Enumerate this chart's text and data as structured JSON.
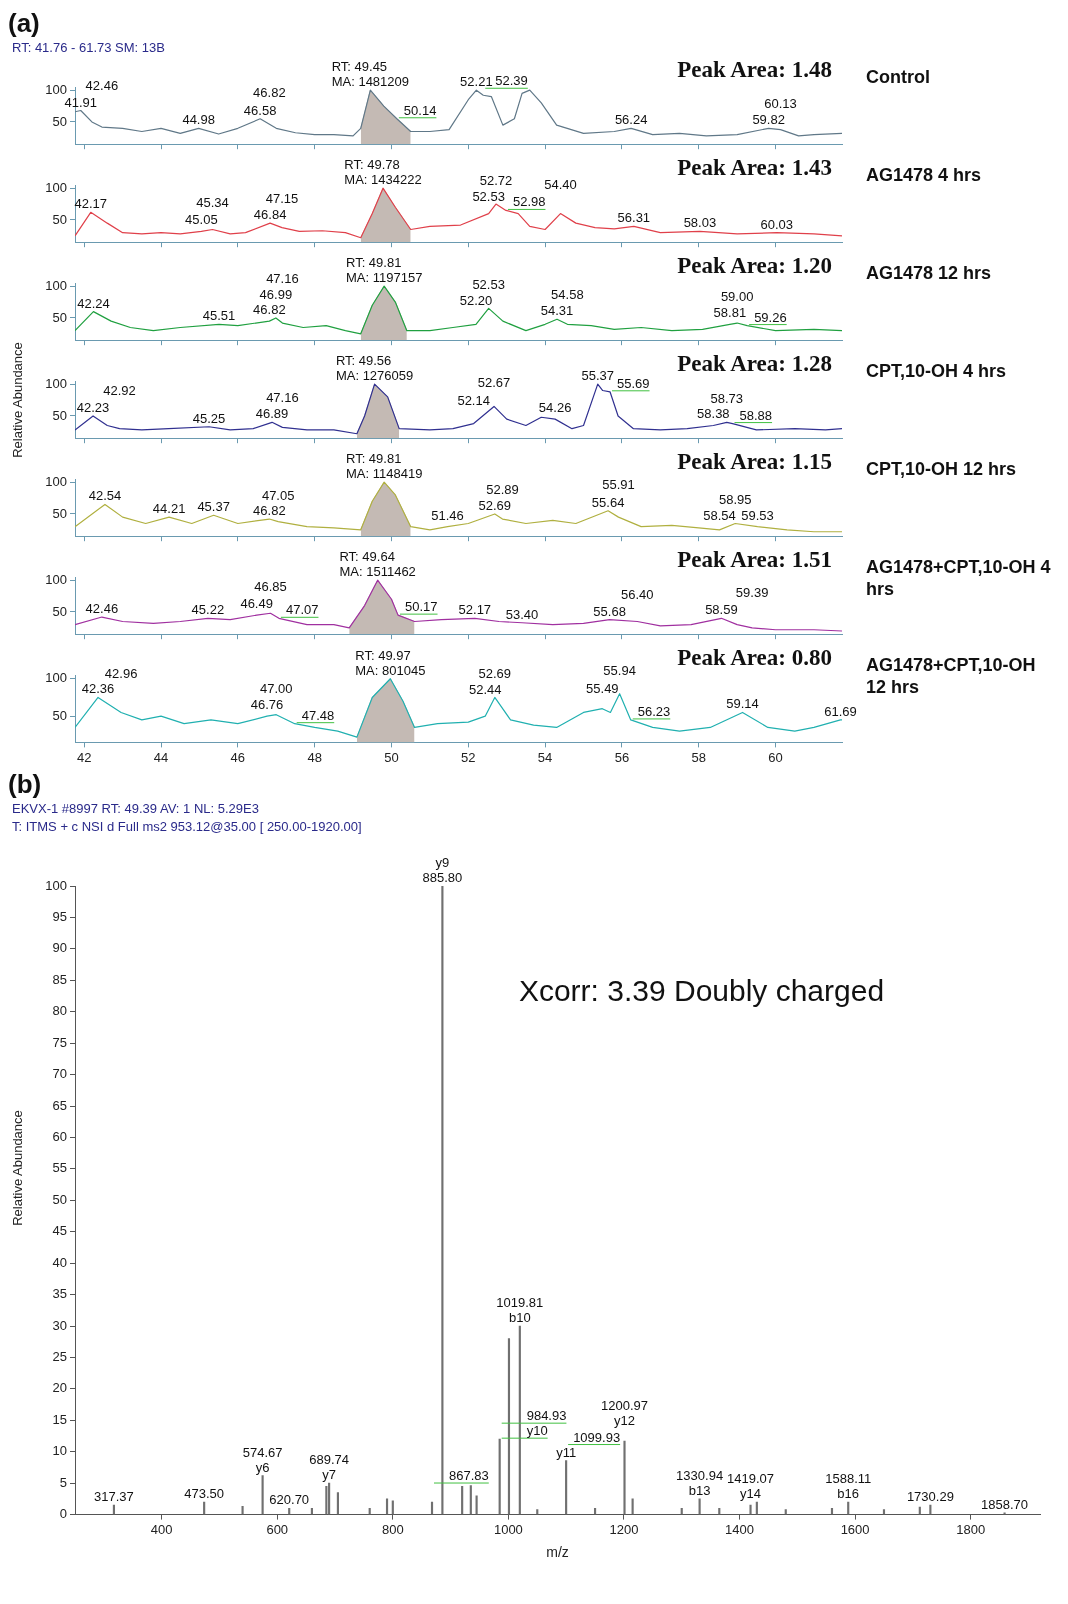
{
  "chart_data": [
    {
      "type": "line",
      "title": "(a)",
      "subtitle": "RT: 41.76 - 61.73   SM: 13B",
      "xlim": [
        41.76,
        61.73
      ],
      "xticks": [
        42,
        44,
        46,
        48,
        50,
        52,
        54,
        56,
        58,
        60
      ],
      "ylim": [
        15,
        105
      ],
      "yticks": [
        50,
        100
      ],
      "tick_labels": "y",
      "series": [
        {
          "color": "#607888",
          "x": [
            41.76,
            41.91,
            42.2,
            42.46,
            43,
            43.5,
            44,
            44.5,
            44.98,
            45.5,
            46,
            46.58,
            47,
            47.5,
            48,
            48.5,
            49,
            49.2,
            49.45,
            49.8,
            50.14,
            50.5,
            51,
            51.5,
            52,
            52.21,
            52.39,
            52.6,
            52.9,
            53.2,
            53.4,
            53.6,
            53.9,
            54.3,
            55,
            55.8,
            56.24,
            56.8,
            57.5,
            58.2,
            59,
            59.82,
            60.13,
            60.6,
            61,
            61.73
          ],
          "values": [
            66,
            68,
            50,
            42,
            40,
            35,
            40,
            32,
            40,
            31,
            40,
            55,
            40,
            33,
            30,
            30,
            28,
            40,
            100,
            75,
            55,
            35,
            35,
            38,
            85,
            100,
            92,
            90,
            45,
            55,
            95,
            100,
            80,
            45,
            32,
            35,
            40,
            30,
            32,
            28,
            30,
            40,
            38,
            28,
            30,
            32
          ]
        },
        {
          "type": "area",
          "color": "#c4bab4",
          "x": [
            49.2,
            49.45,
            49.8,
            50.14,
            50.5
          ],
          "values": [
            40,
            100,
            75,
            55,
            35
          ]
        }
      ],
      "annotations": [
        "Peak Area: 1.48",
        "Control",
        {
          "text": "RT: 49.45\nMA: 1481209",
          "x": 49.45,
          "y": 100
        },
        {
          "text": "41.91",
          "x": 41.91,
          "y": 68
        },
        {
          "text": "42.46",
          "x": 42.46,
          "y": 42
        },
        {
          "text": "44.98",
          "x": 44.98,
          "y": 40
        },
        {
          "text": "46.58",
          "x": 46.58,
          "y": 55
        },
        {
          "text": "46.82",
          "x": 46.82,
          "y": 45
        },
        {
          "text": "50.14",
          "x": 50.14,
          "y": 55
        },
        {
          "text": "52.21",
          "x": 52.21,
          "y": 100
        },
        {
          "text": "52.39",
          "x": 52.39,
          "y": 92
        },
        {
          "text": "56.24",
          "x": 56.24,
          "y": 40
        },
        {
          "text": "59.82",
          "x": 59.82,
          "y": 40
        },
        {
          "text": "60.13",
          "x": 60.13,
          "y": 38
        }
      ]
    },
    {
      "type": "line",
      "xlim": [
        41.76,
        61.73
      ],
      "xticks": [
        42,
        44,
        46,
        48,
        50,
        52,
        54,
        56,
        58,
        60
      ],
      "ylim": [
        15,
        105
      ],
      "yticks": [
        50,
        100
      ],
      "tick_labels": "y",
      "series": [
        {
          "color": "#e0404a",
          "x": [
            41.76,
            42.17,
            42.6,
            43,
            43.5,
            44,
            44.5,
            45.05,
            45.34,
            45.8,
            46.2,
            46.84,
            47.15,
            47.6,
            48.2,
            48.8,
            49.2,
            49.5,
            49.78,
            50.1,
            50.5,
            51,
            51.8,
            52.53,
            52.72,
            52.98,
            53.3,
            53.6,
            54,
            54.4,
            54.8,
            55.3,
            55.8,
            56.31,
            57,
            58.03,
            59,
            60.03,
            61,
            61.73
          ],
          "values": [
            25,
            62,
            45,
            30,
            28,
            30,
            28,
            32,
            35,
            28,
            30,
            45,
            38,
            32,
            33,
            30,
            22,
            60,
            100,
            70,
            35,
            40,
            42,
            60,
            75,
            65,
            60,
            40,
            35,
            60,
            45,
            38,
            36,
            40,
            30,
            32,
            28,
            30,
            28,
            25
          ]
        },
        {
          "type": "area",
          "color": "#c4bab4",
          "x": [
            49.2,
            49.5,
            49.78,
            50.1,
            50.5
          ],
          "values": [
            22,
            60,
            100,
            70,
            35
          ]
        }
      ],
      "annotations": [
        "Peak Area: 1.43",
        "AG1478 4 hrs",
        {
          "text": "RT: 49.78\nMA: 1434222",
          "x": 49.78,
          "y": 100
        },
        {
          "text": "42.17",
          "x": 42.17,
          "y": 62
        },
        {
          "text": "45.05",
          "x": 45.05,
          "y": 32
        },
        {
          "text": "45.34",
          "x": 45.34,
          "y": 35
        },
        {
          "text": "46.84",
          "x": 46.84,
          "y": 45
        },
        {
          "text": "47.15",
          "x": 47.15,
          "y": 38
        },
        {
          "text": "52.53",
          "x": 52.53,
          "y": 60
        },
        {
          "text": "52.72",
          "x": 52.72,
          "y": 75
        },
        {
          "text": "52.98",
          "x": 52.98,
          "y": 65
        },
        {
          "text": "54.40",
          "x": 54.4,
          "y": 60
        },
        {
          "text": "56.31",
          "x": 56.31,
          "y": 40
        },
        {
          "text": "58.03",
          "x": 58.03,
          "y": 32
        },
        {
          "text": "60.03",
          "x": 60.03,
          "y": 30
        }
      ]
    },
    {
      "type": "line",
      "xlim": [
        41.76,
        61.73
      ],
      "xticks": [
        42,
        44,
        46,
        48,
        50,
        52,
        54,
        56,
        58,
        60
      ],
      "ylim": [
        15,
        105
      ],
      "yticks": [
        50,
        100
      ],
      "tick_labels": "y",
      "series": [
        {
          "color": "#20a040",
          "x": [
            41.76,
            42.24,
            42.7,
            43.2,
            43.8,
            44.5,
            45.51,
            46,
            46.82,
            46.99,
            47.16,
            47.7,
            48.3,
            48.8,
            49.2,
            49.5,
            49.81,
            50.1,
            50.4,
            51,
            51.6,
            52.2,
            52.53,
            52.9,
            53.5,
            54,
            54.31,
            54.58,
            55.2,
            55.8,
            56.5,
            57.3,
            58.1,
            58.81,
            59,
            59.26,
            60,
            61,
            61.73
          ],
          "values": [
            30,
            60,
            45,
            35,
            30,
            35,
            40,
            38,
            45,
            50,
            42,
            35,
            38,
            30,
            25,
            70,
            100,
            75,
            30,
            30,
            35,
            40,
            65,
            45,
            30,
            40,
            48,
            40,
            38,
            32,
            35,
            30,
            32,
            40,
            42,
            38,
            30,
            32,
            30
          ]
        },
        {
          "type": "area",
          "color": "#c4bab4",
          "x": [
            49.2,
            49.5,
            49.81,
            50.1,
            50.4
          ],
          "values": [
            25,
            70,
            100,
            75,
            30
          ]
        }
      ],
      "annotations": [
        "Peak Area: 1.20",
        "AG1478 12 hrs",
        {
          "text": "RT: 49.81\nMA: 1197157",
          "x": 49.81,
          "y": 100
        },
        {
          "text": "42.24",
          "x": 42.24,
          "y": 60
        },
        {
          "text": "45.51",
          "x": 45.51,
          "y": 40
        },
        {
          "text": "46.82",
          "x": 46.82,
          "y": 45
        },
        {
          "text": "46.99",
          "x": 46.99,
          "y": 50
        },
        {
          "text": "47.16",
          "x": 47.16,
          "y": 42
        },
        {
          "text": "52.20",
          "x": 52.2,
          "y": 40
        },
        {
          "text": "52.53",
          "x": 52.53,
          "y": 65
        },
        {
          "text": "54.31",
          "x": 54.31,
          "y": 48
        },
        {
          "text": "54.58",
          "x": 54.58,
          "y": 40
        },
        {
          "text": "58.81",
          "x": 58.81,
          "y": 40
        },
        {
          "text": "59.00",
          "x": 59,
          "y": 42
        },
        {
          "text": "59.26",
          "x": 59.26,
          "y": 38
        }
      ]
    },
    {
      "type": "line",
      "ylabel": "Relative Abundance",
      "xlim": [
        41.76,
        61.73
      ],
      "xticks": [
        42,
        44,
        46,
        48,
        50,
        52,
        54,
        56,
        58,
        60
      ],
      "ylim": [
        15,
        105
      ],
      "yticks": [
        50,
        100
      ],
      "tick_labels": "y",
      "series": [
        {
          "color": "#303090",
          "x": [
            41.76,
            42.23,
            42.6,
            42.92,
            43.5,
            44.2,
            45.25,
            45.8,
            46.4,
            46.89,
            47.16,
            47.8,
            48.5,
            49.1,
            49.3,
            49.56,
            49.9,
            50.2,
            51,
            51.6,
            52.14,
            52.67,
            53,
            53.5,
            53.9,
            54.26,
            54.7,
            55,
            55.37,
            55.5,
            55.69,
            55.9,
            56.3,
            57,
            57.7,
            58.38,
            58.73,
            58.88,
            59.5,
            60.5,
            61.3,
            61.73
          ],
          "values": [
            28,
            50,
            35,
            30,
            28,
            30,
            33,
            28,
            30,
            40,
            32,
            28,
            28,
            22,
            50,
            100,
            80,
            30,
            28,
            30,
            38,
            65,
            45,
            35,
            48,
            45,
            30,
            35,
            100,
            90,
            88,
            50,
            30,
            28,
            30,
            35,
            40,
            38,
            28,
            30,
            28,
            30
          ]
        },
        {
          "type": "area",
          "color": "#c4bab4",
          "x": [
            49.1,
            49.3,
            49.56,
            49.9,
            50.2
          ],
          "values": [
            22,
            50,
            100,
            80,
            30
          ]
        }
      ],
      "annotations": [
        "Peak Area: 1.28",
        "CPT,10-OH 4 hrs",
        {
          "text": "RT: 49.56\nMA: 1276059",
          "x": 49.56,
          "y": 100
        },
        {
          "text": "42.23",
          "x": 42.23,
          "y": 50
        },
        {
          "text": "42.92",
          "x": 42.92,
          "y": 30
        },
        {
          "text": "45.25",
          "x": 45.25,
          "y": 33
        },
        {
          "text": "46.89",
          "x": 46.89,
          "y": 40
        },
        {
          "text": "47.16",
          "x": 47.16,
          "y": 32
        },
        {
          "text": "52.14",
          "x": 52.14,
          "y": 38
        },
        {
          "text": "52.67",
          "x": 52.67,
          "y": 65
        },
        {
          "text": "54.26",
          "x": 54.26,
          "y": 45
        },
        {
          "text": "55.37",
          "x": 55.37,
          "y": 100
        },
        {
          "text": "55.69",
          "x": 55.69,
          "y": 88
        },
        {
          "text": "58.38",
          "x": 58.38,
          "y": 35
        },
        {
          "text": "58.73",
          "x": 58.73,
          "y": 40
        },
        {
          "text": "58.88",
          "x": 58.88,
          "y": 38
        }
      ]
    },
    {
      "type": "line",
      "xlim": [
        41.76,
        61.73
      ],
      "xticks": [
        42,
        44,
        46,
        48,
        50,
        52,
        54,
        56,
        58,
        60
      ],
      "ylim": [
        15,
        105
      ],
      "yticks": [
        50,
        100
      ],
      "tick_labels": "y",
      "series": [
        {
          "color": "#b0b040",
          "x": [
            41.76,
            42.54,
            43,
            43.6,
            44.21,
            44.8,
            45.37,
            46,
            46.82,
            47.05,
            47.8,
            48.5,
            49.2,
            49.5,
            49.81,
            50.1,
            50.5,
            51,
            51.46,
            52,
            52.69,
            52.89,
            53.5,
            54.2,
            54.8,
            55.64,
            55.91,
            56.5,
            57.3,
            58,
            58.54,
            58.95,
            59.53,
            60.3,
            61,
            61.73
          ],
          "values": [
            30,
            65,
            45,
            35,
            45,
            35,
            48,
            35,
            42,
            38,
            30,
            28,
            25,
            70,
            100,
            80,
            30,
            25,
            30,
            35,
            50,
            42,
            35,
            40,
            35,
            55,
            45,
            30,
            32,
            28,
            25,
            35,
            30,
            25,
            22,
            22
          ]
        },
        {
          "type": "area",
          "color": "#c4bab4",
          "x": [
            49.2,
            49.5,
            49.81,
            50.1,
            50.5
          ],
          "values": [
            25,
            70,
            100,
            80,
            30
          ]
        }
      ],
      "annotations": [
        "Peak Area: 1.15",
        "CPT,10-OH 12 hrs",
        {
          "text": "RT: 49.81\nMA: 1148419",
          "x": 49.81,
          "y": 100
        },
        {
          "text": "42.54",
          "x": 42.54,
          "y": 65
        },
        {
          "text": "44.21",
          "x": 44.21,
          "y": 45
        },
        {
          "text": "45.37",
          "x": 45.37,
          "y": 48
        },
        {
          "text": "46.82",
          "x": 46.82,
          "y": 42
        },
        {
          "text": "47.05",
          "x": 47.05,
          "y": 38
        },
        {
          "text": "51.46",
          "x": 51.46,
          "y": 30
        },
        {
          "text": "52.69",
          "x": 52.69,
          "y": 50
        },
        {
          "text": "52.89",
          "x": 52.89,
          "y": 42
        },
        {
          "text": "55.64",
          "x": 55.64,
          "y": 55
        },
        {
          "text": "55.91",
          "x": 55.91,
          "y": 45
        },
        {
          "text": "58.54",
          "x": 58.54,
          "y": 25
        },
        {
          "text": "58.95",
          "x": 58.95,
          "y": 35
        },
        {
          "text": "59.53",
          "x": 59.53,
          "y": 30
        }
      ]
    },
    {
      "type": "line",
      "xlim": [
        41.76,
        61.73
      ],
      "xticks": [
        42,
        44,
        46,
        48,
        50,
        52,
        54,
        56,
        58,
        60
      ],
      "ylim": [
        15,
        105
      ],
      "yticks": [
        50,
        100
      ],
      "tick_labels": "y",
      "series": [
        {
          "color": "#a030a0",
          "x": [
            41.76,
            42.46,
            43,
            43.8,
            44.5,
            45.22,
            45.8,
            46.49,
            46.85,
            47.07,
            47.8,
            48.5,
            48.9,
            49.3,
            49.64,
            50,
            50.17,
            50.6,
            51.3,
            52.17,
            52.8,
            53.4,
            54.2,
            55,
            55.68,
            56.4,
            57,
            57.8,
            58.59,
            59,
            59.39,
            60,
            61,
            61.73
          ],
          "values": [
            30,
            42,
            35,
            32,
            35,
            40,
            38,
            45,
            48,
            40,
            30,
            30,
            25,
            60,
            100,
            70,
            45,
            35,
            38,
            40,
            35,
            33,
            30,
            32,
            38,
            35,
            28,
            30,
            40,
            30,
            25,
            22,
            22,
            20
          ]
        },
        {
          "type": "area",
          "color": "#c4bab4",
          "x": [
            48.9,
            49.3,
            49.64,
            50,
            50.17,
            50.6
          ],
          "values": [
            25,
            60,
            100,
            70,
            45,
            35
          ]
        }
      ],
      "annotations": [
        "Peak Area: 1.51",
        "AG1478+CPT,10-OH 4 hrs",
        {
          "text": "RT: 49.64\nMA: 1511462",
          "x": 49.64,
          "y": 100
        },
        {
          "text": "42.46",
          "x": 42.46,
          "y": 42
        },
        {
          "text": "45.22",
          "x": 45.22,
          "y": 40
        },
        {
          "text": "46.49",
          "x": 46.49,
          "y": 45
        },
        {
          "text": "46.85",
          "x": 46.85,
          "y": 48
        },
        {
          "text": "47.07",
          "x": 47.07,
          "y": 40
        },
        {
          "text": "50.17",
          "x": 50.17,
          "y": 45
        },
        {
          "text": "52.17",
          "x": 52.17,
          "y": 40
        },
        {
          "text": "53.40",
          "x": 53.4,
          "y": 33
        },
        {
          "text": "55.68",
          "x": 55.68,
          "y": 38
        },
        {
          "text": "56.40",
          "x": 56.4,
          "y": 35
        },
        {
          "text": "58.59",
          "x": 58.59,
          "y": 40
        },
        {
          "text": "59.39",
          "x": 59.39,
          "y": 25
        }
      ]
    },
    {
      "type": "line",
      "xlim": [
        41.76,
        61.73
      ],
      "xticks": [
        42,
        44,
        46,
        48,
        50,
        52,
        54,
        56,
        58,
        60
      ],
      "ylim": [
        15,
        105
      ],
      "yticks": [
        50,
        100
      ],
      "series": [
        {
          "color": "#20b0b0",
          "x": [
            41.76,
            42.36,
            42.96,
            43.5,
            44,
            44.6,
            45.3,
            46,
            46.76,
            47,
            47.48,
            48,
            48.6,
            49.1,
            49.5,
            49.97,
            50.3,
            50.6,
            51.2,
            52,
            52.44,
            52.69,
            53.1,
            53.7,
            54.3,
            55,
            55.49,
            55.7,
            55.94,
            56.23,
            56.8,
            57.5,
            58.3,
            59.14,
            59.8,
            60.5,
            61,
            61.69,
            61.73
          ],
          "values": [
            35,
            75,
            55,
            45,
            50,
            40,
            45,
            40,
            50,
            52,
            40,
            35,
            30,
            22,
            75,
            100,
            70,
            35,
            40,
            42,
            50,
            75,
            45,
            38,
            35,
            55,
            60,
            55,
            80,
            45,
            35,
            30,
            35,
            55,
            35,
            30,
            35,
            45,
            45
          ]
        },
        {
          "type": "area",
          "color": "#c4bab4",
          "x": [
            49.1,
            49.5,
            49.97,
            50.3,
            50.6
          ],
          "values": [
            22,
            75,
            100,
            70,
            35
          ]
        }
      ],
      "annotations": [
        "Peak Area: 0.80",
        "AG1478+CPT,10-OH 12 hrs",
        {
          "text": "RT: 49.97\nMA: 801045",
          "x": 49.97,
          "y": 100
        },
        {
          "text": "42.36",
          "x": 42.36,
          "y": 75
        },
        {
          "text": "42.96",
          "x": 42.96,
          "y": 55
        },
        {
          "text": "46.76",
          "x": 46.76,
          "y": 50
        },
        {
          "text": "47.00",
          "x": 47,
          "y": 52
        },
        {
          "text": "47.48",
          "x": 47.48,
          "y": 40
        },
        {
          "text": "52.44",
          "x": 52.44,
          "y": 50
        },
        {
          "text": "52.69",
          "x": 52.69,
          "y": 75
        },
        {
          "text": "55.49",
          "x": 55.49,
          "y": 60
        },
        {
          "text": "55.94",
          "x": 55.94,
          "y": 80
        },
        {
          "text": "56.23",
          "x": 56.23,
          "y": 45
        },
        {
          "text": "59.14",
          "x": 59.14,
          "y": 55
        },
        {
          "text": "61.69",
          "x": 61.69,
          "y": 45
        }
      ]
    },
    {
      "type": "bar",
      "title": "(b)",
      "subtitle": "EKVX-1 #8997   RT: 49.39   AV: 1   NL: 5.29E3\nT: ITMS + c NSI d Full ms2 953.12@35.00 [ 250.00-1920.00]",
      "xlabel": "m/z",
      "ylabel": "Relative Abundance",
      "color": "#707070",
      "x": [
        317.37,
        473.5,
        540,
        574.67,
        620.7,
        660,
        685,
        689.74,
        705,
        760,
        790,
        800,
        867.83,
        885.8,
        920,
        935,
        945,
        984.93,
        1001,
        1019.81,
        1050,
        1099.93,
        1150,
        1200.97,
        1215,
        1300,
        1330.94,
        1365,
        1419.07,
        1430,
        1480,
        1560,
        1588.11,
        1650,
        1712,
        1730.29,
        1858.7
      ],
      "values": [
        1.5,
        2,
        1.3,
        6.2,
        1,
        1,
        4.5,
        5,
        3.5,
        1,
        2.5,
        2.2,
        2,
        100,
        4.5,
        4.6,
        3,
        12,
        28,
        30,
        0.8,
        8.6,
        1,
        11.7,
        2.5,
        1,
        2.5,
        1,
        1.5,
        2,
        0.8,
        1,
        2,
        0.8,
        1.2,
        1.5,
        0.3
      ],
      "xlim": [
        250,
        1920
      ],
      "xticks": [
        400,
        600,
        800,
        1000,
        1200,
        1400,
        1600,
        1800
      ],
      "ylim": [
        0,
        100
      ],
      "yticks": [
        0,
        5,
        10,
        15,
        20,
        25,
        30,
        35,
        40,
        45,
        50,
        55,
        60,
        65,
        70,
        75,
        80,
        85,
        90,
        95,
        100
      ],
      "annotations": [
        "Xcorr: 3.39 Doubly charged",
        {
          "text": "885.80",
          "x": 885.8,
          "y": 100
        },
        {
          "text": "y9",
          "x": 885.8,
          "y": 100
        },
        {
          "text": "b10",
          "x": 1019.81,
          "y": 30
        },
        {
          "text": "1019.81",
          "x": 1019.81,
          "y": 30
        },
        {
          "text": "y10",
          "x": 984.93,
          "y": 12
        },
        {
          "text": "984.93",
          "x": 984.93,
          "y": 12
        },
        {
          "text": "y11",
          "x": 1099.93,
          "y": 8.6
        },
        {
          "text": "1099.93",
          "x": 1099.93,
          "y": 8.6
        },
        {
          "text": "y12",
          "x": 1200.97,
          "y": 11.7
        },
        {
          "text": "1200.97",
          "x": 1200.97,
          "y": 11.7
        },
        {
          "text": "y6",
          "x": 574.67,
          "y": 6.2
        },
        {
          "text": "574.67",
          "x": 574.67,
          "y": 6.2
        },
        {
          "text": "y7",
          "x": 689.74,
          "y": 5
        },
        {
          "text": "689.74",
          "x": 689.74,
          "y": 5
        },
        {
          "text": "620.70",
          "x": 620.7,
          "y": 1
        },
        {
          "text": "317.37",
          "x": 317.37,
          "y": 1.5
        },
        {
          "text": "473.50",
          "x": 473.5,
          "y": 2
        },
        {
          "text": "867.83",
          "x": 867.83,
          "y": 2
        },
        {
          "text": "b13",
          "x": 1330.94,
          "y": 2.5
        },
        {
          "text": "1330.94",
          "x": 1330.94,
          "y": 2.5
        },
        {
          "text": "y14",
          "x": 1419.07,
          "y": 1.5
        },
        {
          "text": "1419.07",
          "x": 1419.07,
          "y": 1.5
        },
        {
          "text": "b16",
          "x": 1588.11,
          "y": 2
        },
        {
          "text": "1588.11",
          "x": 1588.11,
          "y": 2
        },
        {
          "text": "1730.29",
          "x": 1730.29,
          "y": 1.5
        },
        {
          "text": "1858.70",
          "x": 1858.7,
          "y": 0.3
        }
      ]
    }
  ]
}
